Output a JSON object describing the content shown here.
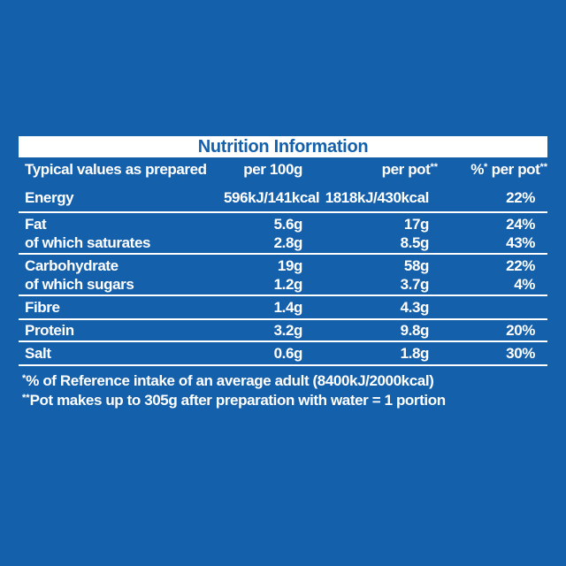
{
  "page": {
    "background_color": "#1560ab",
    "panel_text_color": "#ffffff",
    "title_text_color": "#1560ab"
  },
  "table": {
    "title": "Nutrition Information",
    "header": {
      "col1": "Typical values as prepared",
      "col2": "per 100g",
      "col3_text": "per pot",
      "col3_sup": "**",
      "col4_pct": "%",
      "col4_pct_sup": "*",
      "col4_text": " per pot",
      "col4_sup": "**"
    },
    "groups": [
      {
        "lines": [
          {
            "label": "Energy",
            "per100g": "596kJ/141kcal",
            "per_pot": "1818kJ/430kcal",
            "pct": "22%"
          }
        ]
      },
      {
        "lines": [
          {
            "label": "Fat",
            "per100g": "5.6g",
            "per_pot": "17g",
            "pct": "24%"
          },
          {
            "label": "of which saturates",
            "per100g": "2.8g",
            "per_pot": "8.5g",
            "pct": "43%"
          }
        ]
      },
      {
        "lines": [
          {
            "label": "Carbohydrate",
            "per100g": "19g",
            "per_pot": "58g",
            "pct": "22%"
          },
          {
            "label": "of which sugars",
            "per100g": "1.2g",
            "per_pot": "3.7g",
            "pct": "4%"
          }
        ]
      },
      {
        "lines": [
          {
            "label": "Fibre",
            "per100g": "1.4g",
            "per_pot": "4.3g",
            "pct": ""
          }
        ]
      },
      {
        "lines": [
          {
            "label": "Protein",
            "per100g": "3.2g",
            "per_pot": "9.8g",
            "pct": "20%"
          }
        ]
      },
      {
        "lines": [
          {
            "label": "Salt",
            "per100g": "0.6g",
            "per_pot": "1.8g",
            "pct": "30%"
          }
        ]
      }
    ],
    "footnotes": [
      {
        "sup": "*",
        "text": "% of Reference intake of an average adult (8400kJ/2000kcal)"
      },
      {
        "sup": "**",
        "text": "Pot makes up to 305g after preparation with water = 1 portion"
      }
    ]
  }
}
